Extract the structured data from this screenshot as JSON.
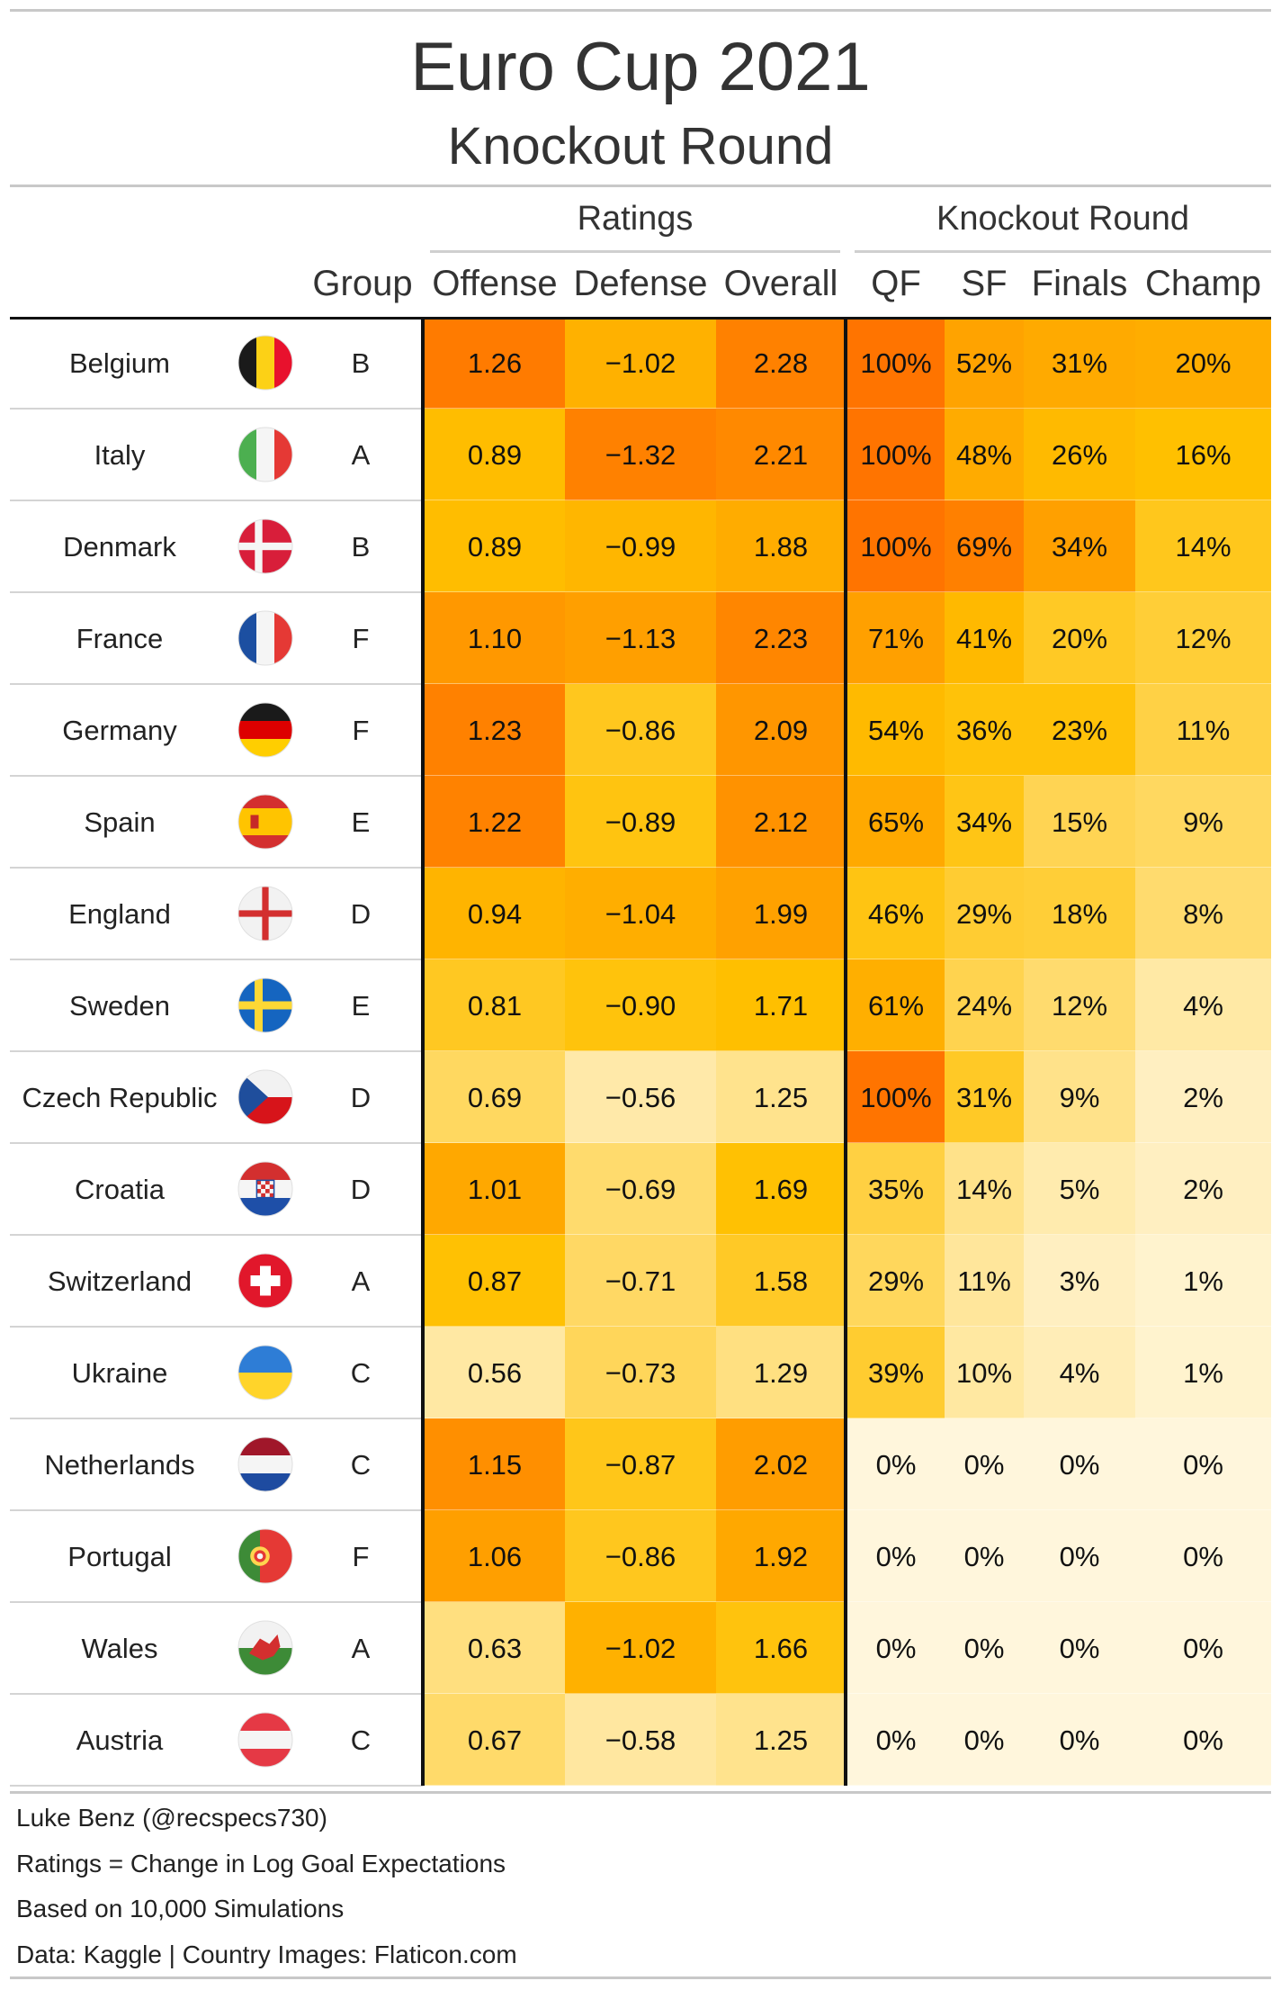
{
  "title": "Euro Cup 2021",
  "subtitle": "Knockout Round",
  "spanners": {
    "ratings": "Ratings",
    "knockout": "Knockout Round"
  },
  "columns": {
    "group": "Group",
    "offense": "Offense",
    "defense": "Defense",
    "overall": "Overall",
    "qf": "QF",
    "sf": "SF",
    "finals": "Finals",
    "champ": "Champ"
  },
  "chart_data": {
    "type": "table",
    "title": "Euro Cup 2021",
    "subtitle": "Knockout Round",
    "columns": [
      "Group",
      "Offense",
      "Defense",
      "Overall",
      "QF",
      "SF",
      "Finals",
      "Champ"
    ],
    "rows": [
      {
        "team": "Belgium",
        "flag": "belgium-flag-icon",
        "group": "B",
        "offense": 1.26,
        "defense": -1.02,
        "overall": 2.28,
        "qf": 100,
        "sf": 52,
        "finals": 31,
        "champ": 20
      },
      {
        "team": "Italy",
        "flag": "italy-flag-icon",
        "group": "A",
        "offense": 0.89,
        "defense": -1.32,
        "overall": 2.21,
        "qf": 100,
        "sf": 48,
        "finals": 26,
        "champ": 16
      },
      {
        "team": "Denmark",
        "flag": "denmark-flag-icon",
        "group": "B",
        "offense": 0.89,
        "defense": -0.99,
        "overall": 1.88,
        "qf": 100,
        "sf": 69,
        "finals": 34,
        "champ": 14
      },
      {
        "team": "France",
        "flag": "france-flag-icon",
        "group": "F",
        "offense": 1.1,
        "defense": -1.13,
        "overall": 2.23,
        "qf": 71,
        "sf": 41,
        "finals": 20,
        "champ": 12
      },
      {
        "team": "Germany",
        "flag": "germany-flag-icon",
        "group": "F",
        "offense": 1.23,
        "defense": -0.86,
        "overall": 2.09,
        "qf": 54,
        "sf": 36,
        "finals": 23,
        "champ": 11
      },
      {
        "team": "Spain",
        "flag": "spain-flag-icon",
        "group": "E",
        "offense": 1.22,
        "defense": -0.89,
        "overall": 2.12,
        "qf": 65,
        "sf": 34,
        "finals": 15,
        "champ": 9
      },
      {
        "team": "England",
        "flag": "england-flag-icon",
        "group": "D",
        "offense": 0.94,
        "defense": -1.04,
        "overall": 1.99,
        "qf": 46,
        "sf": 29,
        "finals": 18,
        "champ": 8
      },
      {
        "team": "Sweden",
        "flag": "sweden-flag-icon",
        "group": "E",
        "offense": 0.81,
        "defense": -0.9,
        "overall": 1.71,
        "qf": 61,
        "sf": 24,
        "finals": 12,
        "champ": 4
      },
      {
        "team": "Czech Republic",
        "flag": "czech-flag-icon",
        "group": "D",
        "offense": 0.69,
        "defense": -0.56,
        "overall": 1.25,
        "qf": 100,
        "sf": 31,
        "finals": 9,
        "champ": 2
      },
      {
        "team": "Croatia",
        "flag": "croatia-flag-icon",
        "group": "D",
        "offense": 1.01,
        "defense": -0.69,
        "overall": 1.69,
        "qf": 35,
        "sf": 14,
        "finals": 5,
        "champ": 2
      },
      {
        "team": "Switzerland",
        "flag": "switzerland-flag-icon",
        "group": "A",
        "offense": 0.87,
        "defense": -0.71,
        "overall": 1.58,
        "qf": 29,
        "sf": 11,
        "finals": 3,
        "champ": 1
      },
      {
        "team": "Ukraine",
        "flag": "ukraine-flag-icon",
        "group": "C",
        "offense": 0.56,
        "defense": -0.73,
        "overall": 1.29,
        "qf": 39,
        "sf": 10,
        "finals": 4,
        "champ": 1
      },
      {
        "team": "Netherlands",
        "flag": "netherlands-flag-icon",
        "group": "C",
        "offense": 1.15,
        "defense": -0.87,
        "overall": 2.02,
        "qf": 0,
        "sf": 0,
        "finals": 0,
        "champ": 0
      },
      {
        "team": "Portugal",
        "flag": "portugal-flag-icon",
        "group": "F",
        "offense": 1.06,
        "defense": -0.86,
        "overall": 1.92,
        "qf": 0,
        "sf": 0,
        "finals": 0,
        "champ": 0
      },
      {
        "team": "Wales",
        "flag": "wales-flag-icon",
        "group": "A",
        "offense": 0.63,
        "defense": -1.02,
        "overall": 1.66,
        "qf": 0,
        "sf": 0,
        "finals": 0,
        "champ": 0
      },
      {
        "team": "Austria",
        "flag": "austria-flag-icon",
        "group": "C",
        "offense": 0.67,
        "defense": -0.58,
        "overall": 1.25,
        "qf": 0,
        "sf": 0,
        "finals": 0,
        "champ": 0
      }
    ]
  },
  "colors": {
    "low": "#fff6dc",
    "mid": "#ffc000",
    "high": "#ff7400"
  },
  "notes": [
    "Luke Benz (@recspecs730)",
    "Ratings = Change in Log Goal Expectations",
    "Based on 10,000 Simulations",
    "Data: Kaggle | Country Images: Flaticon.com"
  ]
}
